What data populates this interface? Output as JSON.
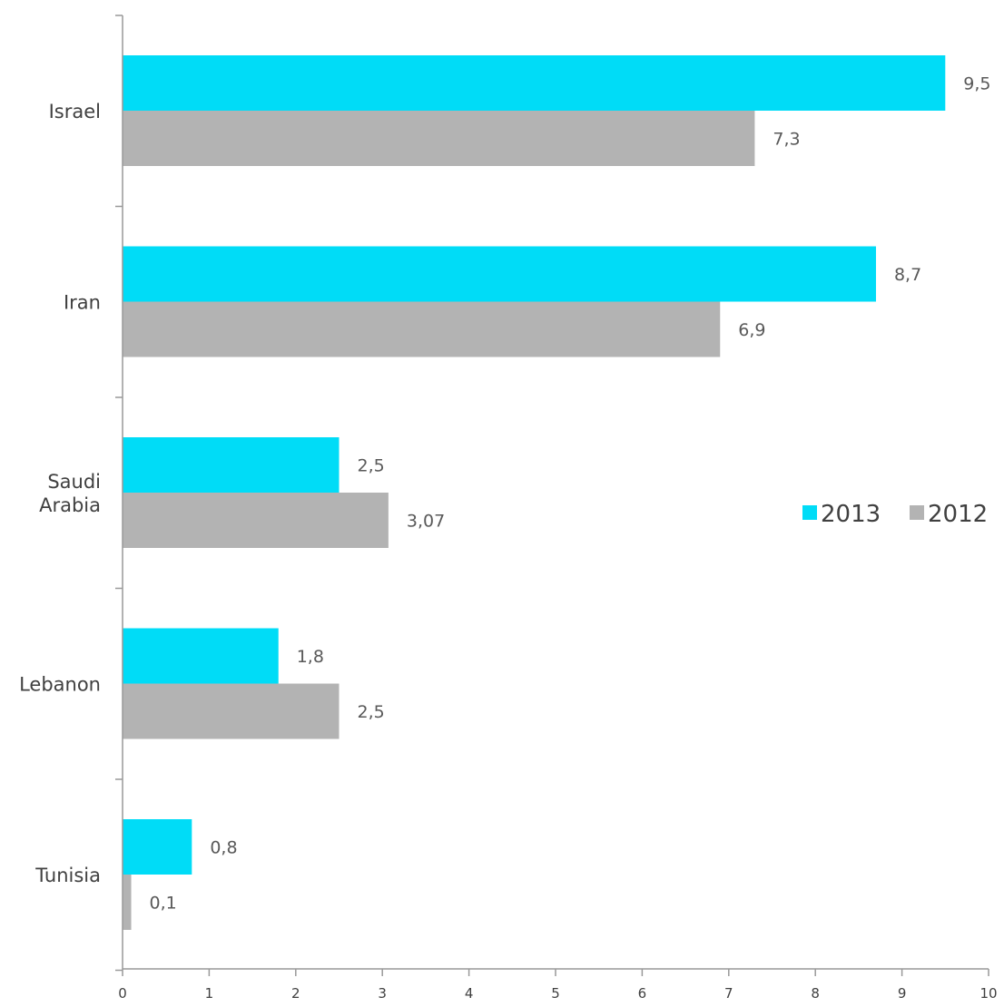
{
  "chart_data": {
    "type": "bar",
    "orientation": "horizontal",
    "categories": [
      "Israel",
      "Iran",
      "Saudi Arabia",
      "Lebanon",
      "Tunisia"
    ],
    "category_lines": [
      [
        "Israel"
      ],
      [
        "Iran"
      ],
      [
        "Saudi",
        "Arabia"
      ],
      [
        "Lebanon"
      ],
      [
        "Tunisia"
      ]
    ],
    "series": [
      {
        "name": "2013",
        "color": "#00DCF7",
        "values": [
          9.5,
          8.7,
          2.5,
          1.8,
          0.8
        ],
        "labels": [
          "9,5",
          "8,7",
          "2,5",
          "1,8",
          "0,8"
        ]
      },
      {
        "name": "2012",
        "color": "#B3B3B3",
        "values": [
          7.3,
          6.9,
          3.07,
          2.5,
          0.1
        ],
        "labels": [
          "7,3",
          "6,9",
          "3,07",
          "2,5",
          "0,1"
        ]
      }
    ],
    "x_ticks": [
      "0",
      "1",
      "2",
      "3",
      "4",
      "5",
      "6",
      "7",
      "8",
      "9",
      "10"
    ],
    "xlim": [
      0,
      10
    ],
    "grid": false,
    "legend_position": "right",
    "axis_color": "#999999",
    "text_color": "#404040",
    "label_color": "#595959"
  }
}
